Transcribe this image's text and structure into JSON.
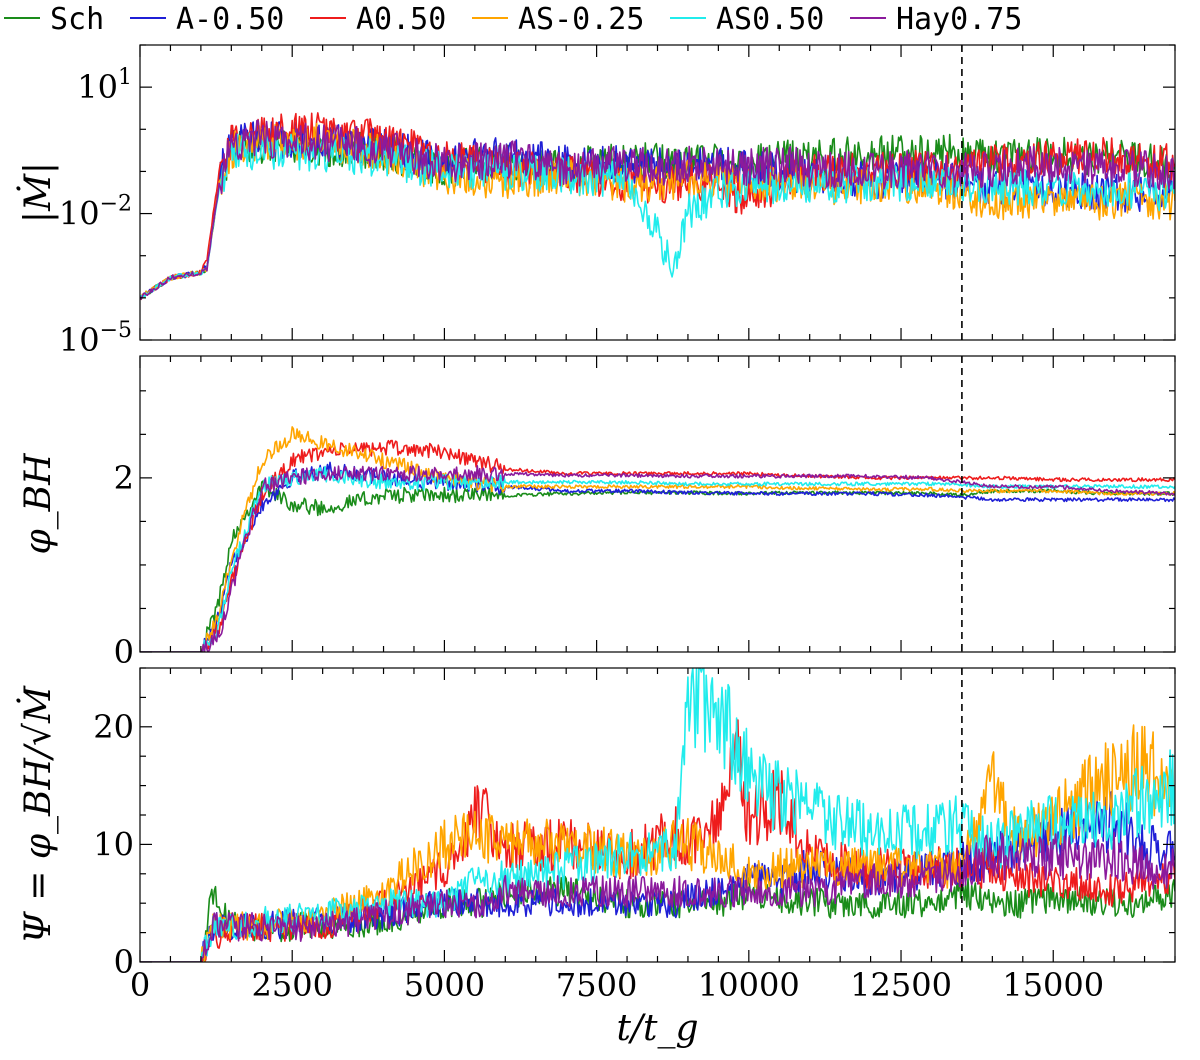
{
  "chart_data": {
    "type": "line",
    "xlabel": "t/t_g",
    "xlim": [
      0,
      17000
    ],
    "x_ticks": [
      "0",
      "2500",
      "5000",
      "7500",
      "10000",
      "12500",
      "15000"
    ],
    "vertical_marker_x": 13500,
    "legend_position": "top",
    "series_styles": [
      {
        "name": "Sch",
        "color": "#1a8c1a"
      },
      {
        "name": "A-0.50",
        "color": "#1f1fd6"
      },
      {
        "name": "A0.50",
        "color": "#ee1c1c"
      },
      {
        "name": "AS-0.25",
        "color": "#ffa500"
      },
      {
        "name": "AS0.50",
        "color": "#21ecec"
      },
      {
        "name": "Hay0.75",
        "color": "#8b1a9c"
      }
    ],
    "panels": [
      {
        "id": "mdot",
        "ylabel": "|Ṁ|",
        "yscale": "log",
        "ylim": [
          1e-05,
          100
        ],
        "y_ticks": [
          {
            "value": 10,
            "label": "10",
            "exp": "1"
          },
          {
            "value": 0.01,
            "label": "10",
            "exp": "−2"
          },
          {
            "value": 1e-05,
            "label": "10",
            "exp": "−5"
          }
        ],
        "x": [
          0,
          500,
          1000,
          1100,
          1300,
          1500,
          2000,
          3000,
          4000,
          5000,
          6000,
          7000,
          8000,
          8800,
          9000,
          9500,
          10000,
          10500,
          11000,
          12000,
          13000,
          13500,
          14000,
          15000,
          16000,
          17000
        ],
        "series": [
          {
            "name": "Sch",
            "values": [
              0.0001,
              0.0003,
              0.0004,
              0.0005,
              0.05,
              0.4,
              0.4,
              0.35,
              0.3,
              0.12,
              0.15,
              0.12,
              0.2,
              0.15,
              0.15,
              0.18,
              0.15,
              0.2,
              0.2,
              0.25,
              0.3,
              0.25,
              0.2,
              0.25,
              0.2,
              0.15
            ]
          },
          {
            "name": "A-0.50",
            "values": [
              0.0001,
              0.0003,
              0.0004,
              0.0006,
              0.08,
              0.5,
              0.6,
              0.5,
              0.35,
              0.2,
              0.25,
              0.15,
              0.15,
              0.12,
              0.12,
              0.15,
              0.12,
              0.1,
              0.08,
              0.06,
              0.07,
              0.05,
              0.04,
              0.04,
              0.03,
              0.03
            ]
          },
          {
            "name": "A0.50",
            "values": [
              0.0001,
              0.0003,
              0.0004,
              0.0008,
              0.1,
              0.6,
              0.8,
              0.9,
              0.6,
              0.2,
              0.12,
              0.1,
              0.05,
              0.05,
              0.06,
              0.05,
              0.02,
              0.05,
              0.1,
              0.1,
              0.12,
              0.15,
              0.15,
              0.2,
              0.25,
              0.15
            ]
          },
          {
            "name": "AS-0.25",
            "values": [
              0.0001,
              0.0003,
              0.0004,
              0.0005,
              0.05,
              0.3,
              0.5,
              0.5,
              0.25,
              0.08,
              0.06,
              0.08,
              0.05,
              0.06,
              0.07,
              0.06,
              0.05,
              0.05,
              0.05,
              0.04,
              0.05,
              0.03,
              0.02,
              0.02,
              0.02,
              0.02
            ]
          },
          {
            "name": "AS0.50",
            "values": [
              0.0001,
              0.0003,
              0.0004,
              0.0005,
              0.04,
              0.3,
              0.3,
              0.25,
              0.2,
              0.1,
              0.1,
              0.08,
              0.06,
              0.0005,
              0.01,
              0.03,
              0.05,
              0.04,
              0.05,
              0.05,
              0.06,
              0.05,
              0.04,
              0.04,
              0.04,
              0.03
            ]
          },
          {
            "name": "Hay0.75",
            "values": [
              0.0001,
              0.0003,
              0.0004,
              0.0005,
              0.05,
              0.5,
              0.6,
              0.5,
              0.35,
              0.15,
              0.2,
              0.12,
              0.15,
              0.12,
              0.15,
              0.12,
              0.12,
              0.15,
              0.12,
              0.1,
              0.12,
              0.1,
              0.12,
              0.15,
              0.12,
              0.1
            ]
          }
        ]
      },
      {
        "id": "phi",
        "ylabel": "φ_BH",
        "yscale": "linear",
        "ylim": [
          0,
          3.4
        ],
        "y_ticks": [
          {
            "value": 0,
            "label": "0"
          },
          {
            "value": 2,
            "label": "2"
          }
        ],
        "x": [
          0,
          500,
          1000,
          1300,
          1500,
          2000,
          2500,
          3000,
          4000,
          5000,
          6000,
          7000,
          8000,
          9000,
          10000,
          11000,
          12000,
          13000,
          13500,
          14000,
          15000,
          16000,
          17000
        ],
        "series": [
          {
            "name": "Sch",
            "values": [
              0,
              0,
              0,
              0.6,
              1.3,
              1.9,
              1.7,
              1.65,
              1.8,
              1.8,
              1.8,
              1.82,
              1.83,
              1.83,
              1.82,
              1.83,
              1.83,
              1.82,
              1.8,
              1.85,
              1.85,
              1.82,
              1.82
            ]
          },
          {
            "name": "A-0.50",
            "values": [
              0,
              0,
              0,
              0.4,
              1.0,
              1.7,
              2.0,
              2.1,
              2.0,
              1.95,
              1.9,
              1.85,
              1.85,
              1.83,
              1.82,
              1.82,
              1.82,
              1.8,
              1.78,
              1.75,
              1.75,
              1.75,
              1.75
            ]
          },
          {
            "name": "A0.50",
            "values": [
              0,
              0,
              0,
              0.3,
              0.8,
              1.8,
              2.2,
              2.3,
              2.35,
              2.3,
              2.1,
              2.05,
              2.05,
              2.05,
              2.05,
              2.02,
              2.0,
              2.0,
              2.0,
              2.0,
              1.98,
              1.98,
              1.98
            ]
          },
          {
            "name": "AS-0.25",
            "values": [
              0,
              0,
              0,
              0.4,
              1.1,
              2.2,
              2.5,
              2.4,
              2.2,
              2.0,
              1.9,
              1.9,
              1.9,
              1.9,
              1.9,
              1.88,
              1.87,
              1.87,
              1.85,
              1.85,
              1.85,
              1.82,
              1.82
            ]
          },
          {
            "name": "AS0.50",
            "values": [
              0,
              0,
              0,
              0.3,
              0.9,
              1.9,
              2.0,
              2.05,
              1.95,
              1.95,
              1.95,
              1.95,
              1.95,
              1.93,
              1.93,
              1.93,
              1.93,
              1.93,
              1.92,
              1.9,
              1.9,
              1.9,
              1.9
            ]
          },
          {
            "name": "Hay0.75",
            "values": [
              0,
              0,
              0,
              0.2,
              0.7,
              1.9,
              2.0,
              2.05,
              2.05,
              2.05,
              2.05,
              2.03,
              2.03,
              2.02,
              2.02,
              2.02,
              2.02,
              2.0,
              1.95,
              1.9,
              1.9,
              1.85,
              1.82
            ]
          }
        ]
      },
      {
        "id": "psi",
        "ylabel": "Ψ = φ_BH/√Ṁ",
        "yscale": "linear",
        "ylim": [
          0,
          25
        ],
        "y_ticks": [
          {
            "value": 0,
            "label": "0"
          },
          {
            "value": 10,
            "label": "10"
          },
          {
            "value": 20,
            "label": "20"
          }
        ],
        "x": [
          0,
          500,
          1000,
          1200,
          1500,
          2000,
          3000,
          4000,
          5000,
          5600,
          6000,
          7000,
          8000,
          8800,
          9000,
          9500,
          9800,
          10000,
          10500,
          11000,
          12000,
          13000,
          13500,
          14000,
          14500,
          15000,
          16000,
          16500,
          17000
        ],
        "series": [
          {
            "name": "Sch",
            "values": [
              0,
              0,
              0,
              6,
              3,
              3,
              3,
              3.5,
              5,
              5,
              6,
              6,
              5,
              5,
              5,
              5,
              5.5,
              6,
              5.5,
              5,
              5,
              5,
              6,
              5,
              5,
              5.5,
              5,
              5,
              6
            ]
          },
          {
            "name": "A-0.50",
            "values": [
              0,
              0,
              0,
              3,
              3,
              3,
              3.5,
              4,
              5,
              5,
              5,
              5,
              5,
              5,
              5.5,
              6,
              6,
              7,
              7,
              8,
              7,
              8,
              8.5,
              9,
              10,
              11,
              12,
              10,
              9
            ]
          },
          {
            "name": "A0.50",
            "values": [
              0,
              0,
              0,
              2,
              3,
              3,
              3,
              5,
              8,
              13,
              10,
              10,
              9,
              11,
              10,
              12,
              18,
              12,
              14,
              9,
              8,
              8,
              8,
              8,
              7,
              7,
              6,
              7,
              7
            ]
          },
          {
            "name": "AS-0.25",
            "values": [
              0,
              0,
              0,
              3,
              3,
              3,
              4,
              6,
              10,
              11,
              10,
              10,
              9,
              10,
              10,
              9,
              8,
              8,
              8,
              8,
              8,
              8,
              8,
              16,
              10,
              12,
              16,
              17,
              14
            ]
          },
          {
            "name": "AS0.50",
            "values": [
              0,
              0,
              0,
              3,
              3,
              3.5,
              4,
              5,
              5,
              7,
              7,
              8,
              9,
              10,
              24,
              20,
              19,
              16,
              14,
              13,
              11,
              11,
              12,
              10,
              11,
              12,
              12,
              14,
              15
            ]
          },
          {
            "name": "Hay0.75",
            "values": [
              0,
              0,
              0,
              3,
              3,
              3,
              3,
              4,
              5,
              5,
              6,
              6,
              6,
              6,
              6,
              6,
              6,
              6,
              6,
              6,
              7,
              7,
              8,
              9,
              9,
              9,
              9,
              8,
              8
            ]
          }
        ]
      }
    ]
  }
}
